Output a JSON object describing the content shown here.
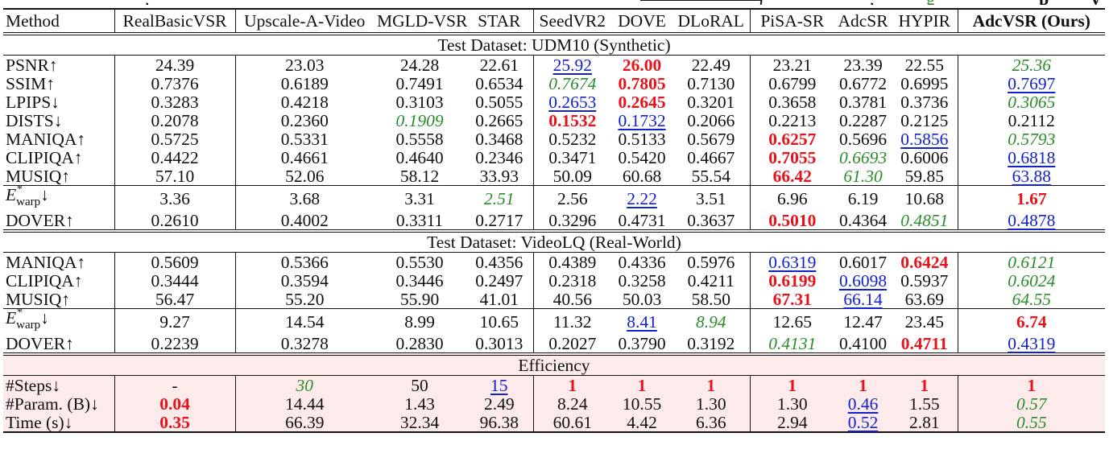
{
  "caption_fragment": {
    "note": "partially visible caption descenders only"
  },
  "legend_colors": {
    "best": "#e8121a",
    "second": "#1122cc",
    "third": "#2a8c2a",
    "efficiency_bg": "#fdeaea"
  },
  "header": {
    "method": "Method",
    "columns": [
      "RealBasicVSR",
      "Upscale-A-Video",
      "MGLD-VSR",
      "STAR",
      "SeedVR2",
      "DOVE",
      "DLoRAL",
      "PiSA-SR",
      "AdcSR",
      "HYPIR",
      "AdcVSR (Ours)"
    ]
  },
  "sections": [
    {
      "title": "Test Dataset: UDM10 (Synthetic)",
      "rows": [
        {
          "metric": "PSNR↑",
          "values": [
            "24.39",
            "23.03",
            "24.28",
            "22.61",
            "25.92",
            "26.00",
            "22.49",
            "23.21",
            "23.39",
            "22.55",
            "25.36"
          ],
          "styles": [
            "",
            "",
            "",
            "",
            "second",
            "best",
            "",
            "",
            "",
            "",
            "third"
          ]
        },
        {
          "metric": "SSIM↑",
          "values": [
            "0.7376",
            "0.6189",
            "0.7491",
            "0.6534",
            "0.7674",
            "0.7805",
            "0.7130",
            "0.6799",
            "0.6772",
            "0.6995",
            "0.7697"
          ],
          "styles": [
            "",
            "",
            "",
            "",
            "third",
            "best",
            "",
            "",
            "",
            "",
            "second"
          ]
        },
        {
          "metric": "LPIPS↓",
          "values": [
            "0.3283",
            "0.4218",
            "0.3103",
            "0.5055",
            "0.2653",
            "0.2645",
            "0.3201",
            "0.3658",
            "0.3781",
            "0.3736",
            "0.3065"
          ],
          "styles": [
            "",
            "",
            "",
            "",
            "second",
            "best",
            "",
            "",
            "",
            "",
            "third"
          ]
        },
        {
          "metric": "DISTS↓",
          "values": [
            "0.2078",
            "0.2360",
            "0.1909",
            "0.2665",
            "0.1532",
            "0.1732",
            "0.2066",
            "0.2213",
            "0.2287",
            "0.2125",
            "0.2112"
          ],
          "styles": [
            "",
            "",
            "third",
            "",
            "best",
            "second",
            "",
            "",
            "",
            "",
            ""
          ]
        },
        {
          "metric": "MANIQA↑",
          "values": [
            "0.5725",
            "0.5331",
            "0.5558",
            "0.3468",
            "0.5232",
            "0.5133",
            "0.5679",
            "0.6257",
            "0.5696",
            "0.5856",
            "0.5793"
          ],
          "styles": [
            "",
            "",
            "",
            "",
            "",
            "",
            "",
            "best",
            "",
            "second",
            "third"
          ]
        },
        {
          "metric": "CLIPIQA↑",
          "values": [
            "0.4422",
            "0.4661",
            "0.4640",
            "0.2346",
            "0.3471",
            "0.5420",
            "0.4667",
            "0.7055",
            "0.6693",
            "0.6006",
            "0.6818"
          ],
          "styles": [
            "",
            "",
            "",
            "",
            "",
            "",
            "",
            "best",
            "third",
            "",
            "second"
          ]
        },
        {
          "metric": "MUSIQ↑",
          "values": [
            "57.10",
            "52.06",
            "58.12",
            "33.93",
            "50.09",
            "60.68",
            "55.54",
            "66.42",
            "61.30",
            "59.85",
            "63.88"
          ],
          "styles": [
            "",
            "",
            "",
            "",
            "",
            "",
            "",
            "best",
            "third",
            "",
            "second"
          ]
        },
        {
          "metric": "E*warp↓",
          "values": [
            "3.36",
            "3.68",
            "3.31",
            "2.51",
            "2.56",
            "2.22",
            "3.51",
            "6.96",
            "6.19",
            "10.68",
            "1.67"
          ],
          "styles": [
            "",
            "",
            "",
            "third",
            "",
            "second",
            "",
            "",
            "",
            "",
            "best"
          ]
        },
        {
          "metric": "DOVER↑",
          "values": [
            "0.2610",
            "0.4002",
            "0.3311",
            "0.2717",
            "0.3296",
            "0.4731",
            "0.3637",
            "0.5010",
            "0.4364",
            "0.4851",
            "0.4878"
          ],
          "styles": [
            "",
            "",
            "",
            "",
            "",
            "",
            "",
            "best",
            "",
            "third",
            "second"
          ]
        }
      ]
    },
    {
      "title": "Test Dataset: VideoLQ (Real-World)",
      "rows": [
        {
          "metric": "MANIQA↑",
          "values": [
            "0.5609",
            "0.5366",
            "0.5530",
            "0.4356",
            "0.4389",
            "0.4336",
            "0.5976",
            "0.6319",
            "0.6017",
            "0.6424",
            "0.6121"
          ],
          "styles": [
            "",
            "",
            "",
            "",
            "",
            "",
            "",
            "second",
            "",
            "best",
            "third"
          ]
        },
        {
          "metric": "CLIPIQA↑",
          "values": [
            "0.3444",
            "0.3594",
            "0.3446",
            "0.2497",
            "0.2318",
            "0.3258",
            "0.4211",
            "0.6199",
            "0.6098",
            "0.5937",
            "0.6024"
          ],
          "styles": [
            "",
            "",
            "",
            "",
            "",
            "",
            "",
            "best",
            "second",
            "",
            "third"
          ]
        },
        {
          "metric": "MUSIQ↑",
          "values": [
            "56.47",
            "55.20",
            "55.90",
            "41.01",
            "40.56",
            "50.03",
            "58.50",
            "67.31",
            "66.14",
            "63.69",
            "64.55"
          ],
          "styles": [
            "",
            "",
            "",
            "",
            "",
            "",
            "",
            "best",
            "second",
            "",
            "third"
          ]
        },
        {
          "metric": "E*warp↓",
          "values": [
            "9.27",
            "14.54",
            "8.99",
            "10.65",
            "11.32",
            "8.41",
            "8.94",
            "12.65",
            "12.47",
            "23.45",
            "6.74"
          ],
          "styles": [
            "",
            "",
            "",
            "",
            "",
            "second",
            "third",
            "",
            "",
            "",
            "best"
          ]
        },
        {
          "metric": "DOVER↑",
          "values": [
            "0.2239",
            "0.3278",
            "0.2830",
            "0.3013",
            "0.2027",
            "0.3790",
            "0.3192",
            "0.4131",
            "0.4100",
            "0.4711",
            "0.4319"
          ],
          "styles": [
            "",
            "",
            "",
            "",
            "",
            "",
            "",
            "third",
            "",
            "best",
            "second"
          ]
        }
      ]
    },
    {
      "title": "Efficiency",
      "rows": [
        {
          "metric": "#Steps↓",
          "values": [
            "-",
            "30",
            "50",
            "15",
            "1",
            "1",
            "1",
            "1",
            "1",
            "1",
            "1"
          ],
          "styles": [
            "",
            "third",
            "",
            "second",
            "best",
            "best",
            "best",
            "best",
            "best",
            "best",
            "best"
          ]
        },
        {
          "metric": "#Param. (B)↓",
          "values": [
            "0.04",
            "14.44",
            "1.43",
            "2.49",
            "8.24",
            "10.55",
            "1.30",
            "1.30",
            "0.46",
            "1.55",
            "0.57"
          ],
          "styles": [
            "best",
            "",
            "",
            "",
            "",
            "",
            "",
            "",
            "second",
            "",
            "third"
          ]
        },
        {
          "metric": "Time (s)↓",
          "values": [
            "0.35",
            "66.39",
            "32.34",
            "96.38",
            "60.61",
            "4.42",
            "6.36",
            "2.94",
            "0.52",
            "2.81",
            "0.55"
          ],
          "styles": [
            "best",
            "",
            "",
            "",
            "",
            "",
            "",
            "",
            "second",
            "",
            "third"
          ]
        }
      ]
    }
  ]
}
